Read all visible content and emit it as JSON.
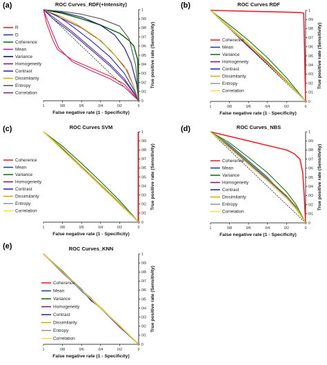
{
  "figure": {
    "background": "#ffffff",
    "panel_labels": [
      "(a)",
      "(b)",
      "(c)",
      "(d)",
      "(e)"
    ]
  },
  "chart_data": [
    {
      "panel": "(a)",
      "type": "line",
      "title": "ROC Curves_RDF(+Intensity)",
      "xlabel": "False negative rate (1 - Specificity)",
      "ylabel": "True positive rate (Sensitivity)",
      "xlim": [
        1,
        0
      ],
      "ylim": [
        0,
        1
      ],
      "xticks": [
        "1",
        "0/8",
        "0/6",
        "0/4",
        "0/2",
        "0"
      ],
      "yticks": [
        "1",
        "0/9",
        "0/8",
        "0/7",
        "0/6",
        "0/5",
        "0/4",
        "0/3",
        "0/2",
        "0/1",
        "0"
      ],
      "legend_position": "left",
      "diagonal_reference": true,
      "series": [
        {
          "name": "R",
          "color": "#e8232a",
          "x": [
            1,
            0.97,
            0.9,
            0.85,
            0.7,
            0.5,
            0.3,
            0.15,
            0.05,
            0
          ],
          "y": [
            1,
            0.86,
            0.66,
            0.56,
            0.45,
            0.36,
            0.27,
            0.18,
            0.06,
            0
          ]
        },
        {
          "name": "D",
          "color": "#1f3fa8",
          "x": [
            1,
            0.9,
            0.7,
            0.5,
            0.3,
            0.15,
            0.05,
            0
          ],
          "y": [
            1,
            0.9,
            0.74,
            0.56,
            0.38,
            0.22,
            0.08,
            0
          ]
        },
        {
          "name": "Coherence",
          "color": "#1a6e1a",
          "x": [
            1,
            0.8,
            0.6,
            0.4,
            0.2,
            0.1,
            0.05,
            0.01,
            0
          ],
          "y": [
            1,
            0.96,
            0.9,
            0.83,
            0.74,
            0.66,
            0.6,
            0.45,
            0
          ]
        },
        {
          "name": "Mean",
          "color": "#b02a8a",
          "x": [
            1,
            0.92,
            0.84,
            0.7,
            0.5,
            0.3,
            0.15,
            0.05,
            0
          ],
          "y": [
            1,
            0.78,
            0.58,
            0.43,
            0.33,
            0.24,
            0.15,
            0.05,
            0
          ]
        },
        {
          "name": "Variance",
          "color": "#101070",
          "x": [
            1,
            0.8,
            0.6,
            0.4,
            0.25,
            0.15,
            0.08,
            0.02,
            0
          ],
          "y": [
            1,
            0.97,
            0.92,
            0.83,
            0.72,
            0.58,
            0.42,
            0.18,
            0
          ]
        },
        {
          "name": "Homogeneity",
          "color": "#8a1a6a",
          "x": [
            1,
            0.8,
            0.6,
            0.4,
            0.25,
            0.12,
            0.05,
            0
          ],
          "y": [
            1,
            0.9,
            0.8,
            0.66,
            0.5,
            0.33,
            0.15,
            0
          ]
        },
        {
          "name": "Contrast",
          "color": "#2a2ab8",
          "x": [
            1,
            0.85,
            0.7,
            0.5,
            0.3,
            0.15,
            0.05,
            0
          ],
          "y": [
            1,
            0.93,
            0.82,
            0.66,
            0.48,
            0.3,
            0.12,
            0
          ]
        },
        {
          "name": "Dissimilarity",
          "color": "#c8b400",
          "x": [
            1,
            0.85,
            0.65,
            0.45,
            0.3,
            0.15,
            0.05,
            0
          ],
          "y": [
            1,
            0.94,
            0.84,
            0.7,
            0.56,
            0.38,
            0.15,
            0
          ]
        },
        {
          "name": "Entropy",
          "color": "#555555",
          "x": [
            1,
            0.8,
            0.6,
            0.4,
            0.2,
            0.1,
            0.03,
            0
          ],
          "y": [
            1,
            0.98,
            0.95,
            0.9,
            0.82,
            0.68,
            0.38,
            0
          ]
        },
        {
          "name": "Correlation",
          "color": "#7a2a7a",
          "x": [
            1,
            0.85,
            0.7,
            0.5,
            0.3,
            0.15,
            0.05,
            0
          ],
          "y": [
            1,
            0.88,
            0.76,
            0.58,
            0.4,
            0.24,
            0.09,
            0
          ]
        }
      ]
    },
    {
      "panel": "(b)",
      "type": "line",
      "title": "ROC Curves RDF",
      "xlabel": "False negative rate (1 - Specificity)",
      "ylabel": "True positive rate (Sensitivity)",
      "xlim": [
        1,
        0
      ],
      "ylim": [
        0,
        1
      ],
      "xticks": [
        "1",
        "0/8",
        "0/6",
        "0/4",
        "0/2",
        "0"
      ],
      "yticks": [
        "1",
        "0/9",
        "0/8",
        "0/7",
        "0/6",
        "0/5",
        "0/4",
        "0/3",
        "0/2",
        "0/1",
        "0"
      ],
      "legend_position": "center-left",
      "diagonal_reference": true,
      "series": [
        {
          "name": "Coherence",
          "color": "#e8232a",
          "x": [
            1,
            0.6,
            0.2,
            0.05,
            0.02,
            0.01,
            0
          ],
          "y": [
            1,
            0.99,
            0.98,
            0.975,
            0.97,
            0.5,
            0
          ]
        },
        {
          "name": "Mean",
          "color": "#1f3fa8",
          "x": [
            1,
            0.8,
            0.6,
            0.4,
            0.2,
            0
          ],
          "y": [
            1,
            0.82,
            0.62,
            0.43,
            0.22,
            0
          ]
        },
        {
          "name": "Variance",
          "color": "#1a6e1a",
          "x": [
            1,
            0.8,
            0.6,
            0.4,
            0.2,
            0
          ],
          "y": [
            1,
            0.84,
            0.67,
            0.48,
            0.26,
            0
          ]
        },
        {
          "name": "Homogeneity",
          "color": "#8a1a6a",
          "x": [
            1,
            0.8,
            0.6,
            0.4,
            0.2,
            0
          ],
          "y": [
            1,
            0.8,
            0.6,
            0.41,
            0.21,
            0
          ]
        },
        {
          "name": "Contrast",
          "color": "#2a2ab8",
          "x": [
            1,
            0.8,
            0.6,
            0.4,
            0.2,
            0
          ],
          "y": [
            1,
            0.81,
            0.61,
            0.42,
            0.22,
            0
          ]
        },
        {
          "name": "Dissimilarity",
          "color": "#c8b400",
          "x": [
            1,
            0.8,
            0.6,
            0.4,
            0.2,
            0
          ],
          "y": [
            1,
            0.82,
            0.63,
            0.44,
            0.23,
            0
          ]
        },
        {
          "name": "Entropy",
          "color": "#999999",
          "x": [
            1,
            0.8,
            0.6,
            0.4,
            0.2,
            0
          ],
          "y": [
            1,
            0.8,
            0.62,
            0.42,
            0.22,
            0
          ]
        },
        {
          "name": "Correlation",
          "color": "#f0e040",
          "x": [
            1,
            0.8,
            0.6,
            0.4,
            0.2,
            0
          ],
          "y": [
            1,
            0.81,
            0.62,
            0.42,
            0.21,
            0
          ]
        }
      ]
    },
    {
      "panel": "(c)",
      "type": "line",
      "title": "ROC Curves SVM",
      "xlabel": "False negative rate (1 - Specificity)",
      "ylabel": "True positive rate (Sensitivity)",
      "xlim": [
        1,
        0
      ],
      "ylim": [
        0,
        1
      ],
      "xticks": [
        "1",
        "0/8",
        "0/6",
        "0/4",
        "0/2",
        "0"
      ],
      "yticks": [
        "1",
        "0/9",
        "0/8",
        "0/7",
        "0/6",
        "0/5",
        "0/4",
        "0/3",
        "0/2",
        "0/1",
        "0"
      ],
      "legend_position": "center-left",
      "diagonal_reference": true,
      "series": [
        {
          "name": "Coherence",
          "color": "#e8232a",
          "x": [
            0.005,
            0.005
          ],
          "y": [
            1,
            0
          ]
        },
        {
          "name": "Mean",
          "color": "#1f3fa8",
          "x": [
            1,
            0.8,
            0.6,
            0.4,
            0.2,
            0
          ],
          "y": [
            1,
            0.81,
            0.61,
            0.41,
            0.21,
            0
          ]
        },
        {
          "name": "Variance",
          "color": "#1a6e1a",
          "x": [
            1,
            0.8,
            0.6,
            0.4,
            0.2,
            0
          ],
          "y": [
            1,
            0.84,
            0.65,
            0.45,
            0.24,
            0
          ]
        },
        {
          "name": "Homogeneity",
          "color": "#8a1a6a",
          "x": [
            1,
            0.8,
            0.6,
            0.4,
            0.2,
            0
          ],
          "y": [
            1,
            0.8,
            0.6,
            0.4,
            0.2,
            0
          ]
        },
        {
          "name": "Contrast",
          "color": "#2a2ab8",
          "x": [
            1,
            0.8,
            0.6,
            0.4,
            0.2,
            0
          ],
          "y": [
            1,
            0.81,
            0.6,
            0.41,
            0.2,
            0
          ]
        },
        {
          "name": "Dissimilarity",
          "color": "#c8b400",
          "x": [
            1,
            0.8,
            0.6,
            0.4,
            0.2,
            0
          ],
          "y": [
            1,
            0.82,
            0.62,
            0.42,
            0.22,
            0
          ]
        },
        {
          "name": "Entropy",
          "color": "#999999",
          "x": [
            1,
            0.8,
            0.6,
            0.4,
            0.2,
            0
          ],
          "y": [
            1,
            0.8,
            0.61,
            0.41,
            0.21,
            0
          ]
        },
        {
          "name": "Correlation",
          "color": "#f0e040",
          "x": [
            1,
            0.8,
            0.6,
            0.4,
            0.2,
            0
          ],
          "y": [
            1,
            0.8,
            0.6,
            0.4,
            0.2,
            0
          ]
        }
      ]
    },
    {
      "panel": "(d)",
      "type": "line",
      "title": "ROC Curves_NBS",
      "xlabel": "False negative rate (1 - Specificity)",
      "ylabel": "True positive rate (Sensitivity)",
      "xlim": [
        1,
        0
      ],
      "ylim": [
        0,
        1
      ],
      "xticks": [
        "1",
        "0/8",
        "0/6",
        "0/4",
        "0/2",
        "0"
      ],
      "yticks": [
        "1",
        "0/9",
        "0/8",
        "0/7",
        "0/6",
        "0/5",
        "0/4",
        "0/3",
        "0/2",
        "0/1",
        "0"
      ],
      "legend_position": "center-left",
      "diagonal_reference": true,
      "series": [
        {
          "name": "Coherence",
          "color": "#e8232a",
          "x": [
            1,
            0.6,
            0.2,
            0.12,
            0.06,
            0.03,
            0.015,
            0
          ],
          "y": [
            1,
            0.9,
            0.8,
            0.76,
            0.7,
            0.55,
            0.3,
            0
          ]
        },
        {
          "name": "Mean",
          "color": "#1f3fa8",
          "x": [
            1,
            0.8,
            0.6,
            0.4,
            0.2,
            0.1,
            0
          ],
          "y": [
            1,
            0.86,
            0.68,
            0.5,
            0.28,
            0.16,
            0
          ]
        },
        {
          "name": "Variance",
          "color": "#1a6e1a",
          "x": [
            1,
            0.8,
            0.6,
            0.4,
            0.2,
            0.1,
            0
          ],
          "y": [
            1,
            0.88,
            0.72,
            0.55,
            0.34,
            0.2,
            0
          ]
        },
        {
          "name": "Homogeneity",
          "color": "#8a1a6a",
          "x": [
            1,
            0.8,
            0.6,
            0.4,
            0.2,
            0.1,
            0
          ],
          "y": [
            1,
            0.82,
            0.64,
            0.46,
            0.27,
            0.15,
            0
          ]
        },
        {
          "name": "Contrast",
          "color": "#2a2ab8",
          "x": [
            1,
            0.8,
            0.6,
            0.4,
            0.2,
            0.1,
            0
          ],
          "y": [
            1,
            0.84,
            0.66,
            0.48,
            0.29,
            0.17,
            0
          ]
        },
        {
          "name": "Dissimilarity",
          "color": "#c8b400",
          "x": [
            1,
            0.8,
            0.6,
            0.4,
            0.2,
            0.1,
            0
          ],
          "y": [
            1,
            0.85,
            0.67,
            0.49,
            0.3,
            0.18,
            0
          ]
        },
        {
          "name": "Entropy",
          "color": "#999999",
          "x": [
            1,
            0.8,
            0.6,
            0.4,
            0.2,
            0.1,
            0
          ],
          "y": [
            1,
            0.83,
            0.65,
            0.47,
            0.28,
            0.16,
            0
          ]
        },
        {
          "name": "Correlation",
          "color": "#f0e040",
          "x": [
            1,
            0.8,
            0.6,
            0.4,
            0.2,
            0.1,
            0
          ],
          "y": [
            1,
            0.82,
            0.64,
            0.46,
            0.27,
            0.15,
            0
          ]
        }
      ]
    },
    {
      "panel": "(e)",
      "type": "line",
      "title": "ROC Curves_KNN",
      "xlabel": "False negative rate (1 - Specificity)",
      "ylabel": "True positive rate (Sensitivity)",
      "xlim": [
        1,
        0
      ],
      "ylim": [
        0,
        1
      ],
      "xticks": [
        "1",
        "0/8",
        "0/6",
        "0/4",
        "0/2",
        "0"
      ],
      "yticks": [
        "1",
        "0/9",
        "0/8",
        "0/7",
        "0/6",
        "0/5",
        "0/4",
        "0/3",
        "0/2",
        "0/1",
        "0"
      ],
      "legend_position": "right",
      "diagonal_reference": true,
      "series": [
        {
          "name": "Coherence",
          "color": "#e8232a",
          "x": [
            1,
            0.8,
            0.6,
            0.4,
            0.2,
            0
          ],
          "y": [
            1,
            0.8,
            0.6,
            0.4,
            0.2,
            0
          ]
        },
        {
          "name": "Mean",
          "color": "#1f3fa8",
          "x": [
            1,
            0.8,
            0.6,
            0.5,
            0.4,
            0.2,
            0
          ],
          "y": [
            1,
            0.8,
            0.61,
            0.48,
            0.41,
            0.2,
            0
          ]
        },
        {
          "name": "Variance",
          "color": "#1a6e1a",
          "x": [
            1,
            0.8,
            0.6,
            0.5,
            0.4,
            0.2,
            0
          ],
          "y": [
            1,
            0.81,
            0.6,
            0.51,
            0.4,
            0.21,
            0
          ]
        },
        {
          "name": "Homogeneity",
          "color": "#8a1a6a",
          "x": [
            1,
            0.8,
            0.6,
            0.5,
            0.4,
            0.2,
            0
          ],
          "y": [
            1,
            0.79,
            0.6,
            0.49,
            0.4,
            0.19,
            0
          ]
        },
        {
          "name": "Contrast",
          "color": "#2a2ab8",
          "x": [
            1,
            0.8,
            0.6,
            0.4,
            0.2,
            0
          ],
          "y": [
            1,
            0.8,
            0.59,
            0.4,
            0.2,
            0
          ]
        },
        {
          "name": "Dissimilarity",
          "color": "#c8b400",
          "x": [
            1,
            0.8,
            0.6,
            0.4,
            0.2,
            0
          ],
          "y": [
            1,
            0.8,
            0.6,
            0.41,
            0.2,
            0
          ]
        },
        {
          "name": "Entropy",
          "color": "#999999",
          "x": [
            1,
            0.8,
            0.6,
            0.4,
            0.2,
            0
          ],
          "y": [
            1,
            0.8,
            0.6,
            0.4,
            0.2,
            0
          ]
        },
        {
          "name": "Correlation",
          "color": "#f0e040",
          "x": [
            1,
            0.8,
            0.6,
            0.4,
            0.2,
            0
          ],
          "y": [
            1,
            0.8,
            0.6,
            0.4,
            0.21,
            0
          ]
        }
      ]
    }
  ]
}
